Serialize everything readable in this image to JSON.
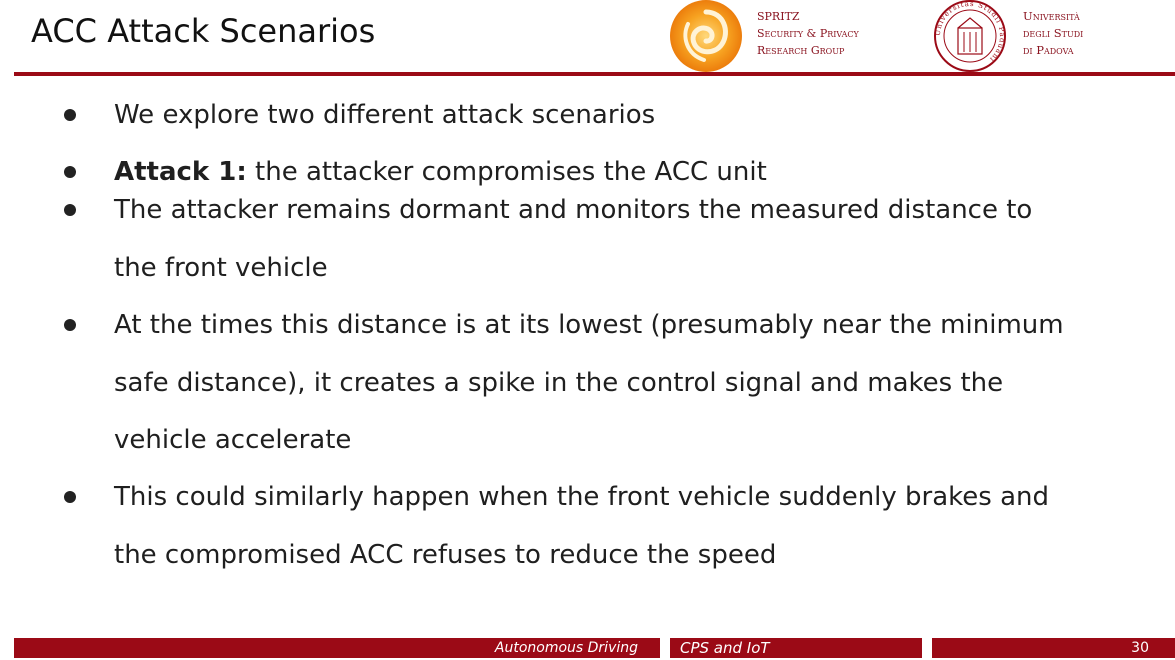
{
  "header": {
    "title": "ACC Attack Scenarios",
    "spritz": {
      "line1": "SPRITZ",
      "line2": "Security & Privacy",
      "line3": "Research Group"
    },
    "unipd": {
      "line1": "Università",
      "line2": "degli Studi",
      "line3": "di Padova",
      "seal_text": "Universitas Studii Paduani"
    }
  },
  "bullets": [
    {
      "bold": "",
      "text": "We explore two different attack scenarios"
    },
    {
      "bold": "Attack 1:",
      "text": " the attacker compromises the ACC unit"
    },
    {
      "bold": "",
      "text": "The attacker remains dormant and monitors the measured distance to the front vehicle"
    },
    {
      "bold": "",
      "text": "At the times this distance is at its lowest (presumably near the minimum safe distance), it creates a spike in the control signal and makes the vehicle accelerate"
    },
    {
      "bold": "",
      "text": "This could similarly happen when the front vehicle suddenly brakes and the compromised ACC refuses to reduce the speed"
    }
  ],
  "footer": {
    "section": "Autonomous Driving",
    "course": "CPS and IoT",
    "page_number": "30"
  },
  "colors": {
    "accent": "#9b0a16",
    "spritz_orange": "#f39a1e"
  }
}
